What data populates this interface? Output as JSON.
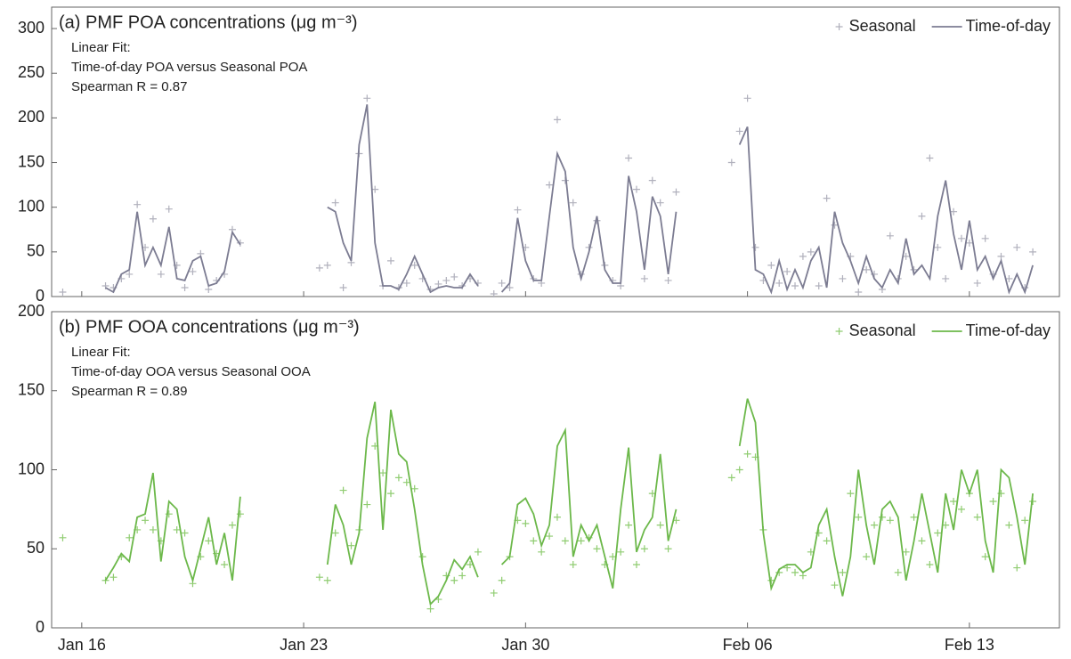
{
  "chart_data": [
    {
      "type": "line",
      "title": "(a) PMF POA concentrations (μg m⁻³)",
      "annotations": [
        "Linear Fit:",
        "Time-of-day POA versus Seasonal POA",
        "Spearman R = 0.87"
      ],
      "legend": "upper right",
      "xlim": [
        15.05,
        46.84
      ],
      "ylim": [
        0,
        324
      ],
      "yticks": [
        0,
        50,
        100,
        150,
        200,
        250,
        300
      ],
      "x": [
        15.4,
        16.75,
        17,
        17.25,
        17.5,
        17.75,
        18,
        18.25,
        18.5,
        18.75,
        19,
        19.25,
        19.5,
        19.75,
        20,
        20.25,
        20.5,
        20.75,
        21,
        23.5,
        23.75,
        24,
        24.25,
        24.5,
        24.75,
        25,
        25.25,
        25.5,
        25.75,
        26,
        26.25,
        26.5,
        26.75,
        27,
        27.25,
        27.5,
        27.75,
        28,
        28.25,
        28.5,
        29,
        29.25,
        29.5,
        29.75,
        30,
        30.25,
        30.5,
        30.75,
        31,
        31.25,
        31.5,
        31.75,
        32,
        32.25,
        32.5,
        32.75,
        33,
        33.25,
        33.5,
        33.75,
        34,
        34.25,
        34.5,
        34.75,
        36.5,
        36.75,
        37,
        37.25,
        37.5,
        37.75,
        38,
        38.25,
        38.5,
        38.75,
        39,
        39.25,
        39.5,
        39.75,
        40,
        40.25,
        40.5,
        40.75,
        41,
        41.25,
        41.5,
        41.75,
        42,
        42.25,
        42.5,
        42.75,
        43,
        43.25,
        43.5,
        43.75,
        44,
        44.25,
        44.5,
        44.75,
        45,
        45.25,
        45.5,
        45.75,
        46
      ],
      "series": [
        {
          "name": "Seasonal",
          "color": "#b0b0bc",
          "mode": "markers",
          "values": [
            5,
            12,
            10,
            20,
            25,
            103,
            55,
            87,
            25,
            98,
            35,
            10,
            28,
            48,
            8,
            18,
            25,
            75,
            60,
            32,
            35,
            105,
            10,
            38,
            160,
            222,
            120,
            12,
            40,
            10,
            15,
            35,
            20,
            8,
            14,
            18,
            22,
            12,
            20,
            15,
            3,
            15,
            10,
            97,
            55,
            20,
            15,
            125,
            198,
            130,
            105,
            25,
            55,
            85,
            35,
            18,
            12,
            155,
            120,
            20,
            130,
            105,
            18,
            117,
            150,
            185,
            222,
            55,
            18,
            35,
            15,
            28,
            12,
            45,
            50,
            12,
            110,
            80,
            20,
            45,
            5,
            30,
            25,
            8,
            68,
            20,
            45,
            30,
            90,
            155,
            55,
            20,
            95,
            65,
            60,
            15,
            65,
            25,
            45,
            20,
            55,
            10,
            50
          ]
        },
        {
          "name": "Time-of-day",
          "color": "#7c7c92",
          "mode": "lines",
          "values": [
            null,
            10,
            5,
            25,
            30,
            95,
            35,
            55,
            35,
            78,
            20,
            18,
            40,
            45,
            12,
            15,
            28,
            72,
            58,
            null,
            100,
            95,
            60,
            40,
            170,
            215,
            60,
            12,
            12,
            8,
            25,
            45,
            25,
            5,
            10,
            12,
            10,
            10,
            25,
            12,
            null,
            5,
            15,
            88,
            40,
            18,
            18,
            90,
            160,
            140,
            55,
            20,
            50,
            90,
            30,
            15,
            15,
            135,
            95,
            30,
            112,
            90,
            25,
            95,
            null,
            170,
            190,
            30,
            25,
            5,
            40,
            8,
            30,
            10,
            40,
            55,
            10,
            95,
            60,
            40,
            15,
            45,
            20,
            10,
            30,
            15,
            65,
            25,
            35,
            20,
            90,
            130,
            70,
            30,
            85,
            30,
            45,
            20,
            40,
            5,
            25,
            5,
            35
          ]
        }
      ]
    },
    {
      "type": "line",
      "title": "(b) PMF OOA concentrations (μg m⁻³)",
      "annotations": [
        "Linear Fit:",
        "Time-of-day OOA versus Seasonal OOA",
        "Spearman R = 0.89"
      ],
      "legend": "upper right",
      "xlim": [
        15.05,
        46.84
      ],
      "ylim": [
        0,
        200
      ],
      "yticks": [
        0,
        50,
        100,
        150,
        200
      ],
      "xticks": [
        {
          "value": 16,
          "label": "Jan 16"
        },
        {
          "value": 23,
          "label": "Jan 23"
        },
        {
          "value": 30,
          "label": "Jan 30"
        },
        {
          "value": 37,
          "label": "Feb 06"
        },
        {
          "value": 44,
          "label": "Feb 13"
        }
      ],
      "x": [
        15.4,
        16.75,
        17,
        17.25,
        17.5,
        17.75,
        18,
        18.25,
        18.5,
        18.75,
        19,
        19.25,
        19.5,
        19.75,
        20,
        20.25,
        20.5,
        20.75,
        21,
        23.5,
        23.75,
        24,
        24.25,
        24.5,
        24.75,
        25,
        25.25,
        25.5,
        25.75,
        26,
        26.25,
        26.5,
        26.75,
        27,
        27.25,
        27.5,
        27.75,
        28,
        28.25,
        28.5,
        29,
        29.25,
        29.5,
        29.75,
        30,
        30.25,
        30.5,
        30.75,
        31,
        31.25,
        31.5,
        31.75,
        32,
        32.25,
        32.5,
        32.75,
        33,
        33.25,
        33.5,
        33.75,
        34,
        34.25,
        34.5,
        34.75,
        36.5,
        36.75,
        37,
        37.25,
        37.5,
        37.75,
        38,
        38.25,
        38.5,
        38.75,
        39,
        39.25,
        39.5,
        39.75,
        40,
        40.25,
        40.5,
        40.75,
        41,
        41.25,
        41.5,
        41.75,
        42,
        42.25,
        42.5,
        42.75,
        43,
        43.25,
        43.5,
        43.75,
        44,
        44.25,
        44.5,
        44.75,
        45,
        45.25,
        45.5,
        45.75,
        46
      ],
      "series": [
        {
          "name": "Seasonal",
          "color": "#8fcc70",
          "mode": "markers",
          "values": [
            57,
            30,
            32,
            45,
            57,
            62,
            68,
            62,
            55,
            72,
            62,
            60,
            28,
            45,
            55,
            47,
            40,
            65,
            72,
            32,
            30,
            60,
            87,
            52,
            62,
            78,
            115,
            98,
            85,
            95,
            92,
            88,
            45,
            12,
            18,
            33,
            30,
            33,
            40,
            48,
            22,
            30,
            45,
            68,
            66,
            55,
            48,
            58,
            70,
            55,
            40,
            55,
            57,
            50,
            40,
            45,
            48,
            65,
            40,
            50,
            85,
            65,
            50,
            68,
            95,
            100,
            110,
            108,
            62,
            30,
            35,
            38,
            35,
            33,
            48,
            60,
            55,
            27,
            35,
            85,
            70,
            45,
            65,
            70,
            68,
            35,
            48,
            70,
            55,
            40,
            60,
            65,
            80,
            75,
            85,
            70,
            45,
            80,
            85,
            65,
            38,
            68,
            80
          ]
        },
        {
          "name": "Time-of-day",
          "color": "#6cb84a",
          "mode": "lines",
          "values": [
            null,
            30,
            38,
            47,
            42,
            70,
            72,
            98,
            42,
            80,
            75,
            45,
            30,
            50,
            70,
            40,
            60,
            30,
            83,
            null,
            40,
            78,
            65,
            40,
            60,
            120,
            143,
            62,
            138,
            110,
            105,
            75,
            40,
            15,
            20,
            30,
            43,
            37,
            45,
            32,
            null,
            40,
            45,
            78,
            82,
            72,
            52,
            65,
            115,
            125,
            45,
            65,
            55,
            65,
            45,
            25,
            75,
            114,
            48,
            62,
            70,
            110,
            55,
            75,
            null,
            115,
            145,
            130,
            60,
            25,
            37,
            40,
            40,
            35,
            38,
            65,
            75,
            45,
            20,
            45,
            100,
            65,
            40,
            75,
            80,
            70,
            30,
            55,
            85,
            60,
            35,
            85,
            62,
            100,
            85,
            100,
            55,
            35,
            100,
            95,
            70,
            40,
            85
          ]
        }
      ]
    }
  ]
}
